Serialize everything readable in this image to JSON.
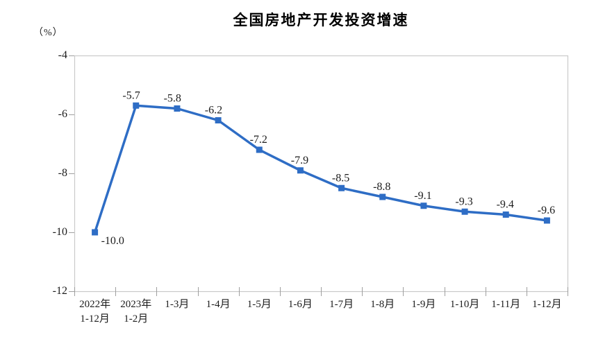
{
  "chart_data": {
    "type": "line",
    "title": "全国房地产开发投资增速",
    "unit_label": "（%）",
    "categories": [
      "2022年\n1-12月",
      "2023年\n1-2月",
      "1-3月",
      "1-4月",
      "1-5月",
      "1-6月",
      "1-7月",
      "1-8月",
      "1-9月",
      "1-10月",
      "1-11月",
      "1-12月"
    ],
    "values": [
      -10.0,
      -5.7,
      -5.8,
      -6.2,
      -7.2,
      -7.9,
      -8.5,
      -8.8,
      -9.1,
      -9.3,
      -9.4,
      -9.6
    ],
    "data_labels": [
      "-10.0",
      "-5.7",
      "-5.8",
      "-6.2",
      "-7.2",
      "-7.9",
      "-8.5",
      "-8.8",
      "-9.1",
      "-9.3",
      "-9.4",
      "-9.6"
    ],
    "ylim": [
      -12,
      -4
    ],
    "y_ticks": [
      -4,
      -6,
      -8,
      -10,
      -12
    ],
    "grid": false,
    "legend_position": "none",
    "marker": "square",
    "colors": {
      "line": "#2e6dc5",
      "marker": "#2e6dc5",
      "axis_frame": "#c9c9c9",
      "tick": "#9f9f9f",
      "text": "#1c1c1c",
      "title": "#000000",
      "background": "#ffffff"
    }
  }
}
